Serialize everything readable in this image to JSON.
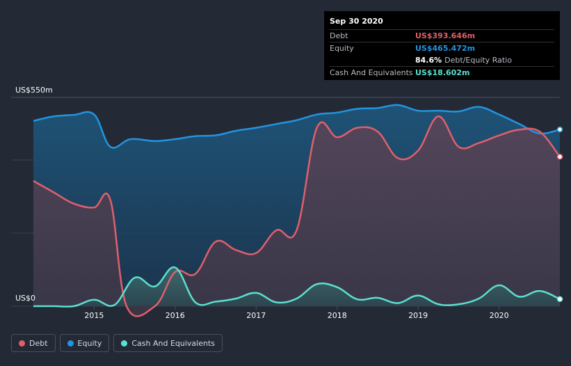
{
  "chart_data": {
    "type": "area",
    "y_unit": "US$",
    "ylim": [
      0,
      550
    ],
    "y_axis_labels": [
      "US$550m",
      "US$0"
    ],
    "x_ticks": [
      "2015",
      "2016",
      "2017",
      "2018",
      "2019",
      "2020"
    ],
    "series": [
      {
        "name": "Equity",
        "color": "#2394df",
        "points": [
          [
            2014.25,
            488
          ],
          [
            2014.5,
            500
          ],
          [
            2014.75,
            504
          ],
          [
            2015.0,
            505
          ],
          [
            2015.2,
            420
          ],
          [
            2015.45,
            440
          ],
          [
            2015.75,
            435
          ],
          [
            2016.0,
            440
          ],
          [
            2016.25,
            448
          ],
          [
            2016.5,
            450
          ],
          [
            2016.75,
            462
          ],
          [
            2017.0,
            470
          ],
          [
            2017.25,
            480
          ],
          [
            2017.5,
            490
          ],
          [
            2017.75,
            505
          ],
          [
            2018.0,
            510
          ],
          [
            2018.25,
            520
          ],
          [
            2018.5,
            522
          ],
          [
            2018.75,
            530
          ],
          [
            2019.0,
            515
          ],
          [
            2019.25,
            515
          ],
          [
            2019.5,
            513
          ],
          [
            2019.75,
            525
          ],
          [
            2020.0,
            505
          ],
          [
            2020.25,
            480
          ],
          [
            2020.5,
            455
          ],
          [
            2020.75,
            465.472
          ]
        ]
      },
      {
        "name": "Debt",
        "color": "#e15f6b",
        "points": [
          [
            2014.25,
            330
          ],
          [
            2014.5,
            300
          ],
          [
            2014.75,
            270
          ],
          [
            2015.0,
            260
          ],
          [
            2015.2,
            280
          ],
          [
            2015.4,
            0
          ],
          [
            2015.75,
            0
          ],
          [
            2016.0,
            90
          ],
          [
            2016.25,
            85
          ],
          [
            2016.5,
            170
          ],
          [
            2016.75,
            148
          ],
          [
            2017.0,
            140
          ],
          [
            2017.25,
            200
          ],
          [
            2017.5,
            200
          ],
          [
            2017.75,
            470
          ],
          [
            2018.0,
            445
          ],
          [
            2018.25,
            470
          ],
          [
            2018.5,
            460
          ],
          [
            2018.75,
            390
          ],
          [
            2019.0,
            410
          ],
          [
            2019.25,
            500
          ],
          [
            2019.5,
            420
          ],
          [
            2019.75,
            430
          ],
          [
            2020.0,
            450
          ],
          [
            2020.25,
            465
          ],
          [
            2020.5,
            460
          ],
          [
            2020.75,
            393.646
          ]
        ]
      },
      {
        "name": "Cash And Equivalents",
        "color": "#5ce0cf",
        "points": [
          [
            2014.25,
            0
          ],
          [
            2014.5,
            0
          ],
          [
            2014.75,
            0
          ],
          [
            2015.0,
            17
          ],
          [
            2015.25,
            3
          ],
          [
            2015.5,
            75
          ],
          [
            2015.75,
            52
          ],
          [
            2016.0,
            102
          ],
          [
            2016.25,
            10
          ],
          [
            2016.5,
            12
          ],
          [
            2016.75,
            20
          ],
          [
            2017.0,
            35
          ],
          [
            2017.25,
            10
          ],
          [
            2017.5,
            20
          ],
          [
            2017.75,
            58
          ],
          [
            2018.0,
            50
          ],
          [
            2018.25,
            18
          ],
          [
            2018.5,
            22
          ],
          [
            2018.75,
            8
          ],
          [
            2019.0,
            28
          ],
          [
            2019.25,
            5
          ],
          [
            2019.5,
            5
          ],
          [
            2019.75,
            20
          ],
          [
            2020.0,
            55
          ],
          [
            2020.25,
            25
          ],
          [
            2020.5,
            40
          ],
          [
            2020.75,
            18.602
          ]
        ]
      }
    ]
  },
  "tooltip": {
    "date": "Sep 30 2020",
    "rows": [
      {
        "label": "Debt",
        "value": "US$393.646m",
        "color": "#e15f6b"
      },
      {
        "label": "Equity",
        "value": "US$465.472m",
        "color": "#2394df"
      },
      {
        "ratio_pct": "84.6%",
        "ratio_label": "Debt/Equity Ratio"
      },
      {
        "label": "Cash And Equivalents",
        "value": "US$18.602m",
        "color": "#5ce0cf"
      }
    ]
  },
  "legend": [
    {
      "label": "Debt",
      "color": "#e15f6b"
    },
    {
      "label": "Equity",
      "color": "#2394df"
    },
    {
      "label": "Cash And Equivalents",
      "color": "#5ce0cf"
    }
  ]
}
